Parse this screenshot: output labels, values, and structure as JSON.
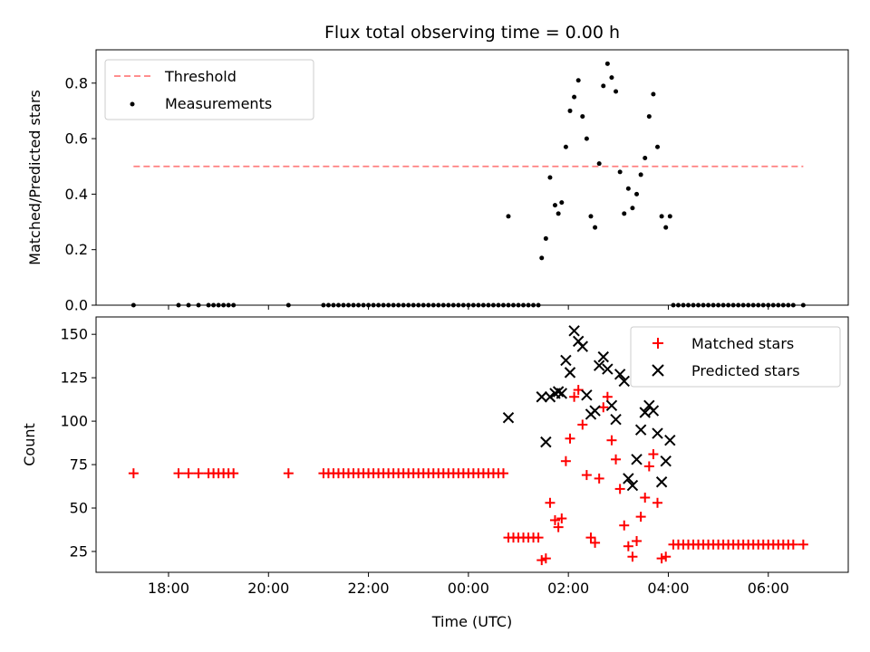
{
  "figure": {
    "title": "Flux total observing time = 0.00 h",
    "xlabel": "Time (UTC)"
  },
  "chart_data": [
    {
      "type": "scatter",
      "ylabel": "Matched/Predicted stars",
      "xlim": [
        "16:33",
        "07:36"
      ],
      "ylim": [
        0,
        0.92
      ],
      "yticks": [
        0.0,
        0.2,
        0.4,
        0.6,
        0.8
      ],
      "ytick_labels": [
        "0.0",
        "0.2",
        "0.4",
        "0.6",
        "0.8"
      ],
      "legend_position": "top-left",
      "threshold": {
        "name": "Threshold",
        "value": 0.5,
        "x_range": [
          "17:18",
          "06:42"
        ],
        "color": "#ff7f7f",
        "style": "dashed"
      },
      "series": [
        {
          "name": "Measurements",
          "marker": "dot",
          "color": "#000000",
          "points": [
            [
              "17:18",
              0
            ],
            [
              "18:12",
              0
            ],
            [
              "18:24",
              0
            ],
            [
              "18:36",
              0
            ],
            [
              "18:48",
              0
            ],
            [
              "18:54",
              0
            ],
            [
              "19:00",
              0
            ],
            [
              "19:06",
              0
            ],
            [
              "19:12",
              0
            ],
            [
              "19:18",
              0
            ],
            [
              "20:24",
              0
            ],
            [
              "21:06",
              0
            ],
            [
              "21:12",
              0
            ],
            [
              "21:18",
              0
            ],
            [
              "21:24",
              0
            ],
            [
              "21:30",
              0
            ],
            [
              "21:36",
              0
            ],
            [
              "21:42",
              0
            ],
            [
              "21:48",
              0
            ],
            [
              "21:54",
              0
            ],
            [
              "22:00",
              0
            ],
            [
              "22:06",
              0
            ],
            [
              "22:12",
              0
            ],
            [
              "22:18",
              0
            ],
            [
              "22:24",
              0
            ],
            [
              "22:30",
              0
            ],
            [
              "22:36",
              0
            ],
            [
              "22:42",
              0
            ],
            [
              "22:48",
              0
            ],
            [
              "22:54",
              0
            ],
            [
              "23:00",
              0
            ],
            [
              "23:06",
              0
            ],
            [
              "23:12",
              0
            ],
            [
              "23:18",
              0
            ],
            [
              "23:24",
              0
            ],
            [
              "23:30",
              0
            ],
            [
              "23:36",
              0
            ],
            [
              "23:42",
              0
            ],
            [
              "23:48",
              0
            ],
            [
              "23:54",
              0
            ],
            [
              "00:00",
              0
            ],
            [
              "00:06",
              0
            ],
            [
              "00:12",
              0
            ],
            [
              "00:18",
              0
            ],
            [
              "00:24",
              0
            ],
            [
              "00:30",
              0
            ],
            [
              "00:36",
              0
            ],
            [
              "00:42",
              0
            ],
            [
              "00:48",
              0
            ],
            [
              "00:54",
              0
            ],
            [
              "01:00",
              0
            ],
            [
              "01:06",
              0
            ],
            [
              "01:12",
              0
            ],
            [
              "01:18",
              0
            ],
            [
              "01:24",
              0
            ],
            [
              "00:48",
              0.32
            ],
            [
              "01:28",
              0.17
            ],
            [
              "01:33",
              0.24
            ],
            [
              "01:38",
              0.46
            ],
            [
              "01:44",
              0.36
            ],
            [
              "01:48",
              0.33
            ],
            [
              "01:52",
              0.37
            ],
            [
              "01:57",
              0.57
            ],
            [
              "02:02",
              0.7
            ],
            [
              "02:07",
              0.75
            ],
            [
              "02:12",
              0.81
            ],
            [
              "02:17",
              0.68
            ],
            [
              "02:22",
              0.6
            ],
            [
              "02:27",
              0.32
            ],
            [
              "02:32",
              0.28
            ],
            [
              "02:37",
              0.51
            ],
            [
              "02:42",
              0.79
            ],
            [
              "02:47",
              0.87
            ],
            [
              "02:52",
              0.82
            ],
            [
              "02:57",
              0.77
            ],
            [
              "03:02",
              0.48
            ],
            [
              "03:07",
              0.33
            ],
            [
              "03:12",
              0.42
            ],
            [
              "03:17",
              0.35
            ],
            [
              "03:22",
              0.4
            ],
            [
              "03:27",
              0.47
            ],
            [
              "03:32",
              0.53
            ],
            [
              "03:37",
              0.68
            ],
            [
              "03:42",
              0.76
            ],
            [
              "03:47",
              0.57
            ],
            [
              "03:52",
              0.32
            ],
            [
              "03:57",
              0.28
            ],
            [
              "04:02",
              0.32
            ],
            [
              "04:06",
              0
            ],
            [
              "04:12",
              0
            ],
            [
              "04:18",
              0
            ],
            [
              "04:24",
              0
            ],
            [
              "04:30",
              0
            ],
            [
              "04:36",
              0
            ],
            [
              "04:42",
              0
            ],
            [
              "04:48",
              0
            ],
            [
              "04:54",
              0
            ],
            [
              "05:00",
              0
            ],
            [
              "05:06",
              0
            ],
            [
              "05:12",
              0
            ],
            [
              "05:18",
              0
            ],
            [
              "05:24",
              0
            ],
            [
              "05:30",
              0
            ],
            [
              "05:36",
              0
            ],
            [
              "05:42",
              0
            ],
            [
              "05:48",
              0
            ],
            [
              "05:54",
              0
            ],
            [
              "06:00",
              0
            ],
            [
              "06:06",
              0
            ],
            [
              "06:12",
              0
            ],
            [
              "06:18",
              0
            ],
            [
              "06:24",
              0
            ],
            [
              "06:30",
              0
            ],
            [
              "06:42",
              0
            ]
          ]
        }
      ]
    },
    {
      "type": "scatter",
      "ylabel": "Count",
      "xlim": [
        "16:33",
        "07:36"
      ],
      "ylim": [
        13,
        160
      ],
      "yticks": [
        25,
        50,
        75,
        100,
        125,
        150
      ],
      "ytick_labels": [
        "25",
        "50",
        "75",
        "100",
        "125",
        "150"
      ],
      "xticks": [
        "18:00",
        "20:00",
        "22:00",
        "00:00",
        "02:00",
        "04:00",
        "06:00"
      ],
      "legend_position": "top-right",
      "series": [
        {
          "name": "Matched stars",
          "marker": "plus",
          "color": "#ff0000",
          "points": [
            [
              "17:18",
              70
            ],
            [
              "18:12",
              70
            ],
            [
              "18:24",
              70
            ],
            [
              "18:36",
              70
            ],
            [
              "18:48",
              70
            ],
            [
              "18:54",
              70
            ],
            [
              "19:00",
              70
            ],
            [
              "19:06",
              70
            ],
            [
              "19:12",
              70
            ],
            [
              "19:18",
              70
            ],
            [
              "20:24",
              70
            ],
            [
              "21:06",
              70
            ],
            [
              "21:12",
              70
            ],
            [
              "21:18",
              70
            ],
            [
              "21:24",
              70
            ],
            [
              "21:30",
              70
            ],
            [
              "21:36",
              70
            ],
            [
              "21:42",
              70
            ],
            [
              "21:48",
              70
            ],
            [
              "21:54",
              70
            ],
            [
              "22:00",
              70
            ],
            [
              "22:06",
              70
            ],
            [
              "22:12",
              70
            ],
            [
              "22:18",
              70
            ],
            [
              "22:24",
              70
            ],
            [
              "22:30",
              70
            ],
            [
              "22:36",
              70
            ],
            [
              "22:42",
              70
            ],
            [
              "22:48",
              70
            ],
            [
              "22:54",
              70
            ],
            [
              "23:00",
              70
            ],
            [
              "23:06",
              70
            ],
            [
              "23:12",
              70
            ],
            [
              "23:18",
              70
            ],
            [
              "23:24",
              70
            ],
            [
              "23:30",
              70
            ],
            [
              "23:36",
              70
            ],
            [
              "23:42",
              70
            ],
            [
              "23:48",
              70
            ],
            [
              "23:54",
              70
            ],
            [
              "00:00",
              70
            ],
            [
              "00:06",
              70
            ],
            [
              "00:12",
              70
            ],
            [
              "00:18",
              70
            ],
            [
              "00:24",
              70
            ],
            [
              "00:30",
              70
            ],
            [
              "00:36",
              70
            ],
            [
              "00:42",
              70
            ],
            [
              "00:48",
              33
            ],
            [
              "00:54",
              33
            ],
            [
              "01:00",
              33
            ],
            [
              "01:06",
              33
            ],
            [
              "01:12",
              33
            ],
            [
              "01:18",
              33
            ],
            [
              "01:24",
              33
            ],
            [
              "01:28",
              20
            ],
            [
              "01:33",
              21
            ],
            [
              "01:38",
              53
            ],
            [
              "01:44",
              43
            ],
            [
              "01:48",
              39
            ],
            [
              "01:52",
              44
            ],
            [
              "01:57",
              77
            ],
            [
              "02:02",
              90
            ],
            [
              "02:07",
              114
            ],
            [
              "02:12",
              118
            ],
            [
              "02:17",
              98
            ],
            [
              "02:22",
              69
            ],
            [
              "02:27",
              33
            ],
            [
              "02:32",
              30
            ],
            [
              "02:37",
              67
            ],
            [
              "02:42",
              108
            ],
            [
              "02:47",
              114
            ],
            [
              "02:52",
              89
            ],
            [
              "02:57",
              78
            ],
            [
              "03:02",
              61
            ],
            [
              "03:07",
              40
            ],
            [
              "03:12",
              28
            ],
            [
              "03:17",
              22
            ],
            [
              "03:22",
              31
            ],
            [
              "03:27",
              45
            ],
            [
              "03:32",
              56
            ],
            [
              "03:37",
              74
            ],
            [
              "03:42",
              81
            ],
            [
              "03:47",
              53
            ],
            [
              "03:52",
              21
            ],
            [
              "03:57",
              22
            ],
            [
              "04:06",
              29
            ],
            [
              "04:12",
              29
            ],
            [
              "04:18",
              29
            ],
            [
              "04:24",
              29
            ],
            [
              "04:30",
              29
            ],
            [
              "04:36",
              29
            ],
            [
              "04:42",
              29
            ],
            [
              "04:48",
              29
            ],
            [
              "04:54",
              29
            ],
            [
              "05:00",
              29
            ],
            [
              "05:06",
              29
            ],
            [
              "05:12",
              29
            ],
            [
              "05:18",
              29
            ],
            [
              "05:24",
              29
            ],
            [
              "05:30",
              29
            ],
            [
              "05:36",
              29
            ],
            [
              "05:42",
              29
            ],
            [
              "05:48",
              29
            ],
            [
              "05:54",
              29
            ],
            [
              "06:00",
              29
            ],
            [
              "06:06",
              29
            ],
            [
              "06:12",
              29
            ],
            [
              "06:18",
              29
            ],
            [
              "06:24",
              29
            ],
            [
              "06:30",
              29
            ],
            [
              "06:42",
              29
            ]
          ]
        },
        {
          "name": "Predicted stars",
          "marker": "x",
          "color": "#000000",
          "points": [
            [
              "00:48",
              102
            ],
            [
              "01:28",
              114
            ],
            [
              "01:33",
              88
            ],
            [
              "01:38",
              114
            ],
            [
              "01:44",
              116
            ],
            [
              "01:48",
              117
            ],
            [
              "01:52",
              116
            ],
            [
              "01:57",
              135
            ],
            [
              "02:02",
              128
            ],
            [
              "02:07",
              152
            ],
            [
              "02:12",
              146
            ],
            [
              "02:17",
              143
            ],
            [
              "02:22",
              115
            ],
            [
              "02:27",
              104
            ],
            [
              "02:32",
              106
            ],
            [
              "02:37",
              132
            ],
            [
              "02:42",
              137
            ],
            [
              "02:47",
              130
            ],
            [
              "02:52",
              109
            ],
            [
              "02:57",
              101
            ],
            [
              "03:02",
              127
            ],
            [
              "03:07",
              123
            ],
            [
              "03:12",
              67
            ],
            [
              "03:17",
              63
            ],
            [
              "03:22",
              78
            ],
            [
              "03:27",
              95
            ],
            [
              "03:32",
              105
            ],
            [
              "03:37",
              109
            ],
            [
              "03:42",
              106
            ],
            [
              "03:47",
              93
            ],
            [
              "03:52",
              65
            ],
            [
              "03:57",
              77
            ],
            [
              "04:02",
              89
            ]
          ]
        }
      ]
    }
  ]
}
